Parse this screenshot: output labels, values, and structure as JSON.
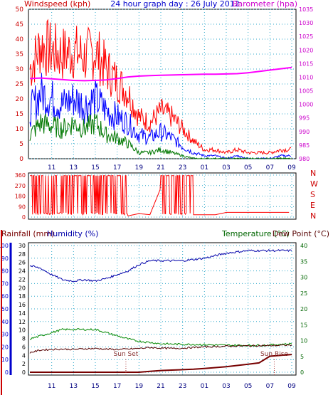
{
  "header": {
    "left_label": "Windspeed (kph)",
    "title": "24 hour graph day : 26 July 2012",
    "right_label": "Barometer (hpa)"
  },
  "colors": {
    "windspeed": "#ff0000",
    "gust": "#0000ff",
    "average": "#007700",
    "barometer": "#ff00ff",
    "direction": "#ff0000",
    "humidity": "#0000aa",
    "temperature": "#008800",
    "dewpoint": "#550000",
    "rainfall": "#770000",
    "grid": "#33aacc",
    "axis_left": "#cc0000",
    "axis_blue": "#0000cc",
    "axis_baro": "#cc00cc",
    "axis_green": "#006600"
  },
  "x_ticks": [
    "11",
    "13",
    "15",
    "17",
    "19",
    "21",
    "23",
    "01",
    "03",
    "05",
    "07",
    "09"
  ],
  "panel1": {
    "y_ticks": [
      0,
      5,
      10,
      15,
      20,
      25,
      30,
      35,
      40,
      45,
      50
    ],
    "baro_ticks": [
      980,
      985,
      990,
      995,
      1000,
      1005,
      1010,
      1015,
      1020,
      1025,
      1030,
      1035
    ]
  },
  "panel2": {
    "y_ticks": [
      0,
      90,
      180,
      270,
      360
    ],
    "compass": [
      "N",
      "W",
      "S",
      "E",
      "N"
    ]
  },
  "panel3": {
    "label_rain": "Rainfall (mm)",
    "label_humidity": "Humidity (%)",
    "label_temp": "Temperature (°C)",
    "label_dew": "Dew Point (°C)",
    "humidity_ticks": [
      0,
      10,
      20,
      30,
      40,
      50,
      60,
      70,
      80,
      90,
      100
    ],
    "rain_ticks": [
      0,
      2,
      4,
      6,
      8,
      10,
      12,
      14,
      16,
      18,
      20,
      22,
      24,
      26,
      28,
      30
    ],
    "temp_ticks": [
      0,
      5,
      10,
      15,
      20,
      25,
      30,
      35,
      40
    ],
    "sun_set": "Sun Set",
    "sun_rise": "Sun Rise"
  },
  "chart_data": [
    {
      "type": "line",
      "xlabel": "",
      "ylabel": "Windspeed (kph)",
      "y2label": "Barometer (hpa)",
      "ylim": [
        0,
        50
      ],
      "y2lim": [
        980,
        1035
      ],
      "x": [
        "09",
        "10",
        "11",
        "12",
        "13",
        "14",
        "15",
        "16",
        "17",
        "18",
        "19",
        "20",
        "21",
        "22",
        "23",
        "00",
        "01",
        "02",
        "03",
        "04",
        "05",
        "06",
        "07",
        "08",
        "09"
      ],
      "series": [
        {
          "name": "Windspeed (kph)",
          "values": [
            30,
            38,
            36,
            35,
            36,
            34,
            36,
            30,
            26,
            22,
            14,
            12,
            16,
            14,
            10,
            6,
            3,
            3,
            2,
            3,
            2,
            2,
            2,
            3,
            3
          ]
        },
        {
          "name": "",
          "values": [
            16,
            22,
            20,
            18,
            20,
            18,
            20,
            16,
            14,
            12,
            8,
            7,
            9,
            7,
            4,
            2,
            1,
            1,
            0,
            1,
            0,
            0,
            0,
            1,
            1
          ]
        },
        {
          "name": "",
          "values": [
            8,
            12,
            11,
            10,
            12,
            10,
            12,
            8,
            7,
            5,
            2,
            2,
            3,
            2,
            1,
            0,
            0,
            0,
            0,
            0,
            0,
            0,
            0,
            0,
            0
          ]
        },
        {
          "name": "Barometer (hpa)",
          "values": [
            1009.5,
            1009.7,
            1009.4,
            1009.1,
            1008.8,
            1008.7,
            1008.8,
            1009.0,
            1009.5,
            1010.1,
            1010.4,
            1010.6,
            1010.7,
            1010.8,
            1010.9,
            1011.0,
            1011.1,
            1011.1,
            1011.2,
            1011.3,
            1011.6,
            1012.1,
            1012.6,
            1013.1,
            1013.6
          ]
        }
      ]
    },
    {
      "type": "scatter",
      "ylabel": "Wind direction",
      "ylim": [
        0,
        360
      ],
      "y_ticks": [
        0,
        90,
        180,
        270,
        360
      ],
      "x": [
        "09",
        "10",
        "11",
        "12",
        "13",
        "14",
        "15",
        "16",
        "17",
        "18",
        "19",
        "20",
        "21",
        "22",
        "23",
        "00",
        "01",
        "02",
        "03",
        "04",
        "05",
        "06",
        "07",
        "08",
        "09"
      ],
      "series": [
        {
          "name": "",
          "values": [
            60,
            200,
            120,
            240,
            150,
            280,
            90,
            200,
            300,
            10,
            30,
            20,
            250,
            200,
            40,
            20,
            20,
            20,
            40,
            40,
            40,
            40,
            40,
            40,
            40
          ]
        }
      ]
    },
    {
      "type": "line",
      "ylabel": "Humidity (%)",
      "y2label": "Temperature (°C)",
      "ylim": [
        0,
        100
      ],
      "y2lim": [
        0,
        40
      ],
      "x": [
        "09",
        "10",
        "11",
        "12",
        "13",
        "14",
        "15",
        "16",
        "17",
        "18",
        "19",
        "20",
        "21",
        "22",
        "23",
        "00",
        "01",
        "02",
        "03",
        "04",
        "05",
        "06",
        "07",
        "08",
        "09"
      ],
      "series": [
        {
          "name": "Humidity (%)",
          "values": [
            84,
            82,
            77,
            73,
            72,
            73,
            72,
            74,
            77,
            80,
            85,
            88,
            88,
            88,
            88,
            89,
            90,
            92,
            94,
            95,
            96,
            96,
            96,
            96,
            96
          ]
        },
        {
          "name": "Temperature (°C)",
          "values": [
            10.5,
            11.5,
            12.5,
            13.5,
            13.5,
            13.5,
            13.5,
            12.5,
            11.5,
            10.5,
            9.8,
            9.4,
            9.0,
            8.9,
            8.8,
            8.8,
            8.7,
            8.6,
            8.5,
            8.5,
            8.5,
            8.5,
            8.6,
            8.8,
            9.0
          ]
        },
        {
          "name": "Dew Point (°C)",
          "values": [
            6.2,
            7.0,
            7.2,
            7.3,
            7.2,
            7.4,
            7.5,
            7.3,
            7.2,
            7.3,
            7.5,
            7.8,
            7.6,
            7.5,
            7.6,
            7.8,
            8.0,
            8.1,
            8.2,
            8.3,
            8.3,
            8.4,
            8.4,
            8.5,
            8.6
          ]
        },
        {
          "name": "Rainfall (mm)",
          "values": [
            0,
            0,
            0,
            0,
            0,
            0,
            0,
            0,
            0,
            0,
            0,
            0.2,
            0.4,
            0.5,
            0.6,
            0.7,
            0.9,
            1.1,
            1.3,
            1.6,
            1.9,
            2.2,
            3.8,
            4.0,
            4.2
          ]
        }
      ]
    }
  ]
}
